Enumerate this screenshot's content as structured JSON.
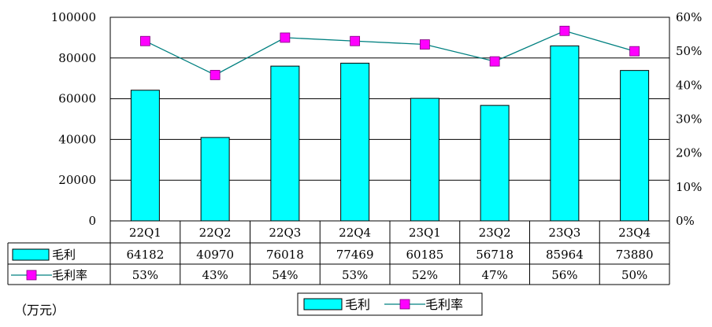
{
  "chart_data": {
    "type": "bar+line",
    "categories": [
      "22Q1",
      "22Q2",
      "22Q3",
      "22Q4",
      "23Q1",
      "23Q2",
      "23Q3",
      "23Q4"
    ],
    "series": [
      {
        "name": "毛利",
        "type": "bar",
        "axis": "left",
        "values": [
          64182,
          40970,
          76018,
          77469,
          60185,
          56718,
          85964,
          73880
        ],
        "labels": [
          "64182",
          "40970",
          "76018",
          "77469",
          "60185",
          "56718",
          "85964",
          "73880"
        ],
        "color": "#00FFFF"
      },
      {
        "name": "毛利率",
        "type": "line",
        "axis": "right",
        "values": [
          53,
          43,
          54,
          53,
          52,
          47,
          56,
          50
        ],
        "labels": [
          "53%",
          "43%",
          "54%",
          "53%",
          "52%",
          "47%",
          "56%",
          "50%"
        ],
        "color": "#008080",
        "marker_color": "#FF00FF"
      }
    ],
    "y_left": {
      "min": 0,
      "max": 100000,
      "ticks": [
        "0",
        "20000",
        "40000",
        "60000",
        "80000",
        "100000"
      ]
    },
    "y_right": {
      "min": 0,
      "max": 60,
      "ticks": [
        "0%",
        "10%",
        "20%",
        "30%",
        "40%",
        "50%",
        "60%"
      ]
    },
    "unit_label": "（万元）",
    "legend": {
      "placement": "bottom-center",
      "items": [
        "毛利",
        "毛利率"
      ]
    },
    "grid": true,
    "data_table": true
  }
}
